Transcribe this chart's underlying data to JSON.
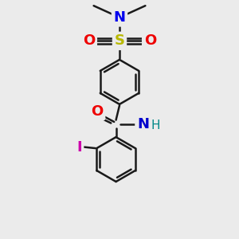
{
  "bg_color": "#ebebeb",
  "bond_color": "#1a1a1a",
  "bond_width": 1.8,
  "atoms": {
    "S": {
      "color": "#b8b800",
      "fontsize": 13,
      "fontweight": "bold"
    },
    "N_dimethyl": {
      "color": "#0000ee",
      "fontsize": 13,
      "fontweight": "bold"
    },
    "N_amide": {
      "color": "#0000cc",
      "fontsize": 13,
      "fontweight": "bold"
    },
    "O_sulfonyl": {
      "color": "#ee0000",
      "fontsize": 13,
      "fontweight": "bold"
    },
    "O_carbonyl": {
      "color": "#ee0000",
      "fontsize": 13,
      "fontweight": "bold"
    },
    "I": {
      "color": "#cc00aa",
      "fontsize": 13,
      "fontweight": "bold"
    },
    "H": {
      "color": "#008888",
      "fontsize": 11,
      "fontweight": "normal"
    }
  },
  "fig_bg": "#ebebeb",
  "xlim": [
    0,
    10
  ],
  "ylim": [
    0,
    10
  ]
}
